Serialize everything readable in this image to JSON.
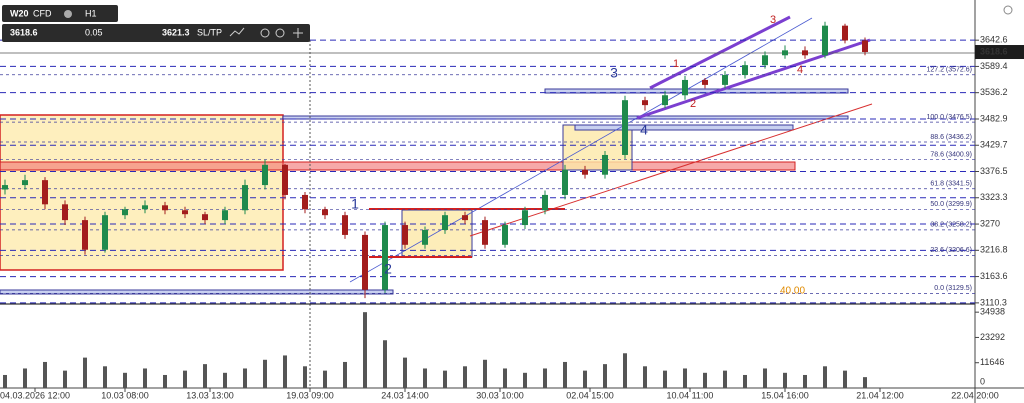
{
  "toolbar": {
    "symbol": "W20",
    "symbol_type": "CFD",
    "timeframe": "H1",
    "bid": "3618.6",
    "spread": "0.05",
    "ask": "3621.3",
    "sltp": "SL/TP"
  },
  "chart_data": {
    "type": "candlestick",
    "ylim": [
      3106,
      3724
    ],
    "yticks": [
      3642.6,
      3589.4,
      3536.2,
      3482.9,
      3429.7,
      3376.5,
      3323.3,
      3270.0,
      3216.8,
      3163.6,
      3110.3
    ],
    "current_price": 3618.6,
    "x_labels": [
      "04.03.2026 12:00",
      "10.03 08:00",
      "13.03 13:00",
      "19.03 09:00",
      "24.03 14:00",
      "30.03 10:00",
      "02.04 15:00",
      "10.04 11:00",
      "15.04 16:00",
      "21.04 12:00",
      "22.04 20:00"
    ],
    "open": [
      3340,
      3349,
      3359,
      3310,
      3278,
      3218,
      3288,
      3300,
      3308,
      3298,
      3290,
      3278,
      3298,
      3349,
      3390,
      3329,
      3300,
      3288,
      3248,
      3137,
      3268,
      3228,
      3258,
      3288,
      3278,
      3228,
      3268,
      3298,
      3329,
      3380,
      3370,
      3410,
      3521,
      3511,
      3531,
      3562,
      3552,
      3572,
      3592,
      3612,
      3622,
      3612,
      3672,
      3642
    ],
    "high": [
      3360,
      3370,
      3365,
      3318,
      3285,
      3295,
      3305,
      3318,
      3315,
      3305,
      3295,
      3305,
      3360,
      3400,
      3392,
      3335,
      3305,
      3295,
      3255,
      3275,
      3275,
      3265,
      3295,
      3295,
      3285,
      3275,
      3305,
      3338,
      3390,
      3388,
      3418,
      3530,
      3528,
      3540,
      3570,
      3566,
      3580,
      3600,
      3620,
      3632,
      3630,
      3680,
      3676,
      3648
    ],
    "low": [
      3330,
      3340,
      3300,
      3268,
      3208,
      3212,
      3280,
      3292,
      3290,
      3282,
      3270,
      3270,
      3290,
      3340,
      3320,
      3292,
      3280,
      3240,
      3120,
      3130,
      3220,
      3220,
      3250,
      3270,
      3220,
      3222,
      3260,
      3290,
      3320,
      3362,
      3362,
      3402,
      3500,
      3505,
      3522,
      3545,
      3545,
      3565,
      3585,
      3605,
      3605,
      3606,
      3636,
      3612
    ],
    "close": [
      3349,
      3359,
      3310,
      3278,
      3218,
      3288,
      3300,
      3308,
      3298,
      3290,
      3278,
      3298,
      3349,
      3390,
      3329,
      3300,
      3288,
      3248,
      3137,
      3268,
      3228,
      3258,
      3288,
      3278,
      3228,
      3268,
      3298,
      3329,
      3380,
      3370,
      3410,
      3521,
      3511,
      3531,
      3562,
      3552,
      3572,
      3592,
      3612,
      3622,
      3612,
      3672,
      3642,
      3618.6
    ],
    "volume": [
      6000,
      9000,
      12000,
      8000,
      14000,
      10000,
      7000,
      9000,
      6000,
      8000,
      11000,
      7000,
      9000,
      13000,
      15000,
      10000,
      8000,
      12000,
      34938,
      22000,
      14000,
      9000,
      8000,
      10000,
      13000,
      9000,
      7000,
      9000,
      12000,
      8000,
      11000,
      16000,
      10000,
      8000,
      9000,
      7000,
      8000,
      6000,
      9000,
      7000,
      6000,
      10000,
      8000,
      5000
    ],
    "vlim": [
      0,
      38700
    ],
    "vticks": [
      34938,
      23292,
      11646,
      0
    ],
    "fib_levels": [
      {
        "value": 3572.6,
        "label": "127.2 (3572.6)"
      },
      {
        "value": 3476.5,
        "label": "100.0 (3476.5)"
      },
      {
        "value": 3436.2,
        "label": "88.6 (3436.2)"
      },
      {
        "value": 3400.9,
        "label": "78.6 (3400.9)"
      },
      {
        "value": 3341.5,
        "label": "61.8 (3341.5)"
      },
      {
        "value": 3299.9,
        "label": "50.0 (3299.9)"
      },
      {
        "value": 3258.2,
        "label": "38.2 (3258.2)"
      },
      {
        "value": 3206.6,
        "label": "23.6 (3206.6)"
      },
      {
        "value": 3129.5,
        "label": "0.0 (3129.5)"
      }
    ],
    "wave_labels_blue": [
      "1",
      "2",
      "3",
      "4"
    ],
    "wave_labels_red": [
      "1",
      "2",
      "3",
      "4"
    ],
    "note": "40.00"
  }
}
